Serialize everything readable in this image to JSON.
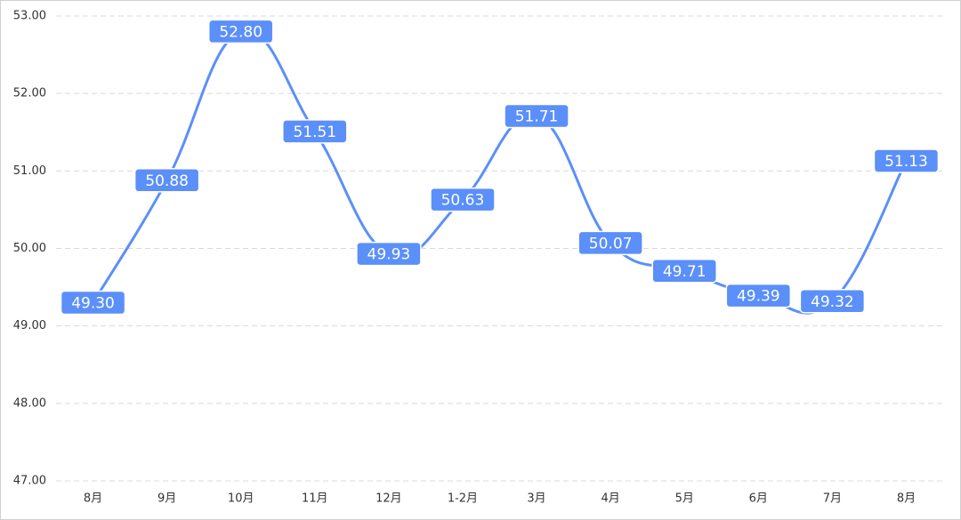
{
  "chart_data": {
    "type": "line",
    "categories": [
      "8月",
      "9月",
      "10月",
      "11月",
      "12月",
      "1-2月",
      "3月",
      "4月",
      "5月",
      "6月",
      "7月",
      "8月"
    ],
    "series": [
      {
        "color": "#5b8ff9",
        "values": [
          49.3,
          50.88,
          52.8,
          51.51,
          49.93,
          50.63,
          51.71,
          50.07,
          49.71,
          49.39,
          49.32,
          51.13
        ],
        "value_labels": [
          "49.30",
          "50.88",
          "52.80",
          "51.51",
          "49.93",
          "50.63",
          "51.71",
          "50.07",
          "49.71",
          "49.39",
          "49.32",
          "51.13"
        ]
      }
    ],
    "ylim": [
      47,
      53
    ],
    "yticks": [
      {
        "value": 47,
        "label": "47.00"
      },
      {
        "value": 48,
        "label": "48.00"
      },
      {
        "value": 49,
        "label": "49.00"
      },
      {
        "value": 50,
        "label": "50.00"
      },
      {
        "value": 51,
        "label": "51.00"
      },
      {
        "value": 52,
        "label": "52.00"
      },
      {
        "value": 53,
        "label": "53.00"
      }
    ],
    "grid": true
  }
}
